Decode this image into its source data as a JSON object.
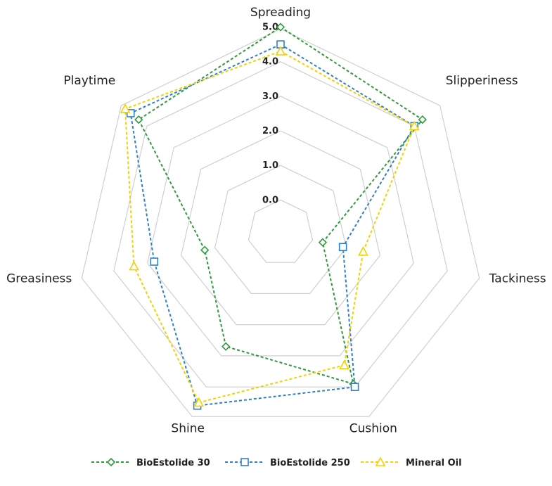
{
  "chart_data": {
    "type": "radar",
    "categories": [
      "Spreading",
      "Slipperiness",
      "Tackiness",
      "Cushion",
      "Shine",
      "Greasiness",
      "Playtime"
    ],
    "rlim": [
      0,
      5
    ],
    "ticks": [
      "0.0",
      "1.0",
      "2.0",
      "3.0",
      "4.0",
      "5.0"
    ],
    "grid": true,
    "legend_position": "bottom",
    "series": [
      {
        "name": "BioEstolide 30",
        "color": "#2e9a3a",
        "marker": "diamond",
        "values": [
          5.0,
          4.3,
          0.3,
          3.9,
          2.7,
          1.3,
          4.3
        ]
      },
      {
        "name": "BioEstolide 250",
        "color": "#2f7fc9",
        "marker": "square",
        "values": [
          4.5,
          4.0,
          0.9,
          4.0,
          4.6,
          2.8,
          4.6
        ]
      },
      {
        "name": "Mineral Oil",
        "color": "#f5d000",
        "marker": "triangle",
        "values": [
          4.3,
          4.0,
          1.5,
          3.3,
          4.5,
          3.4,
          4.8
        ]
      }
    ]
  }
}
